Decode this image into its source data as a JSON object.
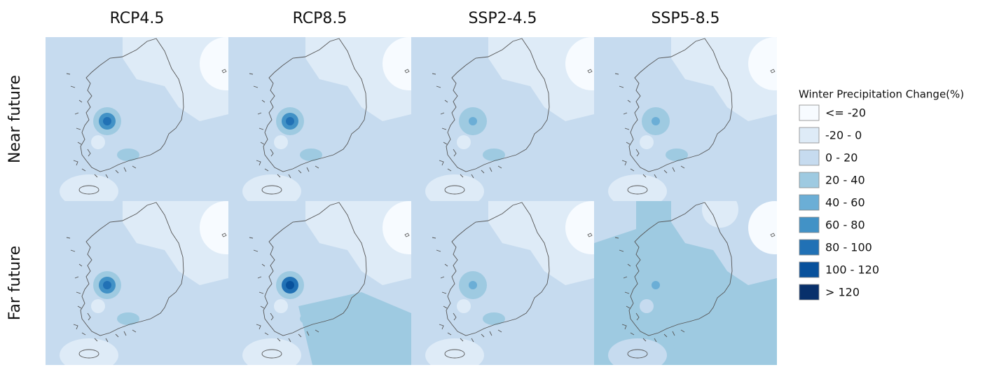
{
  "column_titles": [
    "RCP4.5",
    "RCP8.5",
    "SSP2-4.5",
    "SSP5-8.5"
  ],
  "row_labels": [
    "Near future",
    "Far future"
  ],
  "legend": {
    "title": "Winter Precipitation Change(%)",
    "items": [
      {
        "label": "<= -20",
        "color": "#f7fbff"
      },
      {
        "label": "-20 - 0",
        "color": "#deebf7"
      },
      {
        "label": "0 - 20",
        "color": "#c6dbef"
      },
      {
        "label": "20 - 40",
        "color": "#9ecae1"
      },
      {
        "label": "40 - 60",
        "color": "#6baed6"
      },
      {
        "label": "60 - 80",
        "color": "#4292c6"
      },
      {
        "label": "80 - 100",
        "color": "#2171b5"
      },
      {
        "label": "100 - 120",
        "color": "#08519c"
      },
      {
        "label": "> 120",
        "color": "#08306b"
      }
    ]
  }
}
